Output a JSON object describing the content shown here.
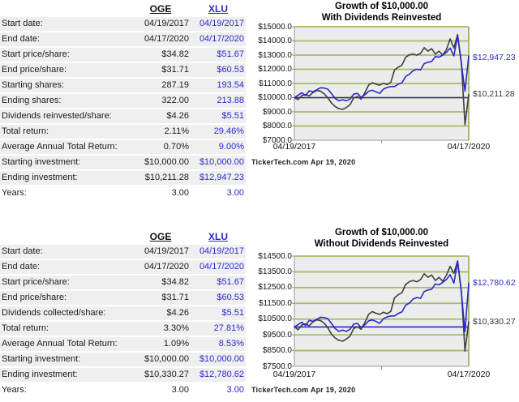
{
  "colors": {
    "link_blue": "#2b2bcc",
    "line_blue": "#2929c8",
    "line_dark": "#3f3f3f",
    "grid_green": "#a4bb67",
    "plot_bg": "#ececec",
    "row_bg": "#efefef"
  },
  "tables": [
    {
      "name": "with_dividends",
      "columns": [
        "OGE",
        "XLU"
      ],
      "rows": [
        {
          "label": "Start date:",
          "oge": "04/19/2017",
          "xlu": "04/19/2017"
        },
        {
          "label": "End date:",
          "oge": "04/17/2020",
          "xlu": "04/17/2020"
        },
        {
          "label": "Start price/share:",
          "oge": "$34.82",
          "xlu": "$51.67"
        },
        {
          "label": "End price/share:",
          "oge": "$31.71",
          "xlu": "$60.53"
        },
        {
          "label": "Starting shares:",
          "oge": "287.19",
          "xlu": "193.54"
        },
        {
          "label": "Ending shares:",
          "oge": "322.00",
          "xlu": "213.88"
        },
        {
          "label": "Dividends reinvested/share:",
          "oge": "$4.26",
          "xlu": "$5.51"
        },
        {
          "label": "Total return:",
          "oge": "2.11%",
          "xlu": "29.46%"
        },
        {
          "label": "Average Annual Total Return:",
          "oge": "0.70%",
          "xlu": "9.00%"
        },
        {
          "label": "Starting investment:",
          "oge": "$10,000.00",
          "xlu": "$10,000.00"
        },
        {
          "label": "Ending investment:",
          "oge": "$10,211.28",
          "xlu": "$12,947.23"
        },
        {
          "label": "Years:",
          "oge": "3.00",
          "xlu": "3.00"
        }
      ]
    },
    {
      "name": "without_dividends",
      "columns": [
        "OGE",
        "XLU"
      ],
      "rows": [
        {
          "label": "Start date:",
          "oge": "04/19/2017",
          "xlu": "04/19/2017"
        },
        {
          "label": "End date:",
          "oge": "04/17/2020",
          "xlu": "04/17/2020"
        },
        {
          "label": "Start price/share:",
          "oge": "$34.82",
          "xlu": "$51.67"
        },
        {
          "label": "End price/share:",
          "oge": "$31.71",
          "xlu": "$60.53"
        },
        {
          "label": "Dividends collected/share:",
          "oge": "$4.26",
          "xlu": "$5.51"
        },
        {
          "label": "Total return:",
          "oge": "3.30%",
          "xlu": "27.81%"
        },
        {
          "label": "Average Annual Total Return:",
          "oge": "1.09%",
          "xlu": "8.53%"
        },
        {
          "label": "Starting investment:",
          "oge": "$10,000.00",
          "xlu": "$10,000.00"
        },
        {
          "label": "Ending investment:",
          "oge": "$10,330.27",
          "xlu": "$12,780.62"
        },
        {
          "label": "Years:",
          "oge": "3.00",
          "xlu": "3.00"
        }
      ]
    }
  ],
  "chart_data": [
    {
      "type": "line",
      "title_line1": "Growth of $10,000.00",
      "title_line2": "With Dividends Reinvested",
      "x_start": "04/19/2017",
      "x_end": "04/17/2020",
      "ylim": [
        7000,
        15000
      ],
      "y_ticks": [
        "$15000.0",
        "$14000.0",
        "$13000.0",
        "$12000.0",
        "$11000.0",
        "$10000.0",
        "$9000.0",
        "$8000.0",
        "$7000.0"
      ],
      "grid": true,
      "legend_position": "none",
      "reference_value": 10000,
      "xlu_end_label": "$12,947.23",
      "oge_end_label": "$10,211.28",
      "source": "TickerTech.com  Apr 19, 2020",
      "series": [
        {
          "name": "OGE",
          "color": "#3f3f3f",
          "final_value": 10211.28,
          "values": [
            10000,
            9870,
            10150,
            10230,
            10120,
            10360,
            10500,
            10470,
            10280,
            10000,
            9620,
            9380,
            9230,
            9180,
            9300,
            9500,
            9980,
            10080,
            9900,
            10350,
            10880,
            11060,
            10950,
            10880,
            11020,
            10920,
            11080,
            11950,
            12150,
            12300,
            12850,
            13020,
            13080,
            13000,
            13120,
            13520,
            13280,
            13450,
            13080,
            13280,
            13000,
            13400,
            14150,
            13500,
            14450,
            12500,
            8100,
            10211.28
          ]
        },
        {
          "name": "XLU",
          "color": "#2929c8",
          "final_value": 12947.23,
          "values": [
            10000,
            10180,
            10350,
            10150,
            10480,
            10420,
            10550,
            10700,
            10680,
            10600,
            10300,
            9950,
            9780,
            9850,
            9780,
            9900,
            10250,
            10300,
            10020,
            10200,
            10450,
            10520,
            10420,
            10300,
            10600,
            10720,
            10780,
            10780,
            10950,
            11050,
            11500,
            11650,
            11900,
            12000,
            11950,
            12400,
            12500,
            12550,
            12900,
            12850,
            13000,
            13200,
            13500,
            12950,
            14350,
            12400,
            10450,
            12947.23
          ]
        }
      ]
    },
    {
      "type": "line",
      "title_line1": "Growth of $10,000.00",
      "title_line2": "Without Dividends Reinvested",
      "x_start": "04/19/2017",
      "x_end": "04/17/2020",
      "ylim": [
        7500,
        14500
      ],
      "y_ticks": [
        "$14500.0",
        "$13500.0",
        "$12500.0",
        "$11500.0",
        "$10500.0",
        "$9500.0",
        "$8500.0",
        "$7500.0"
      ],
      "grid": true,
      "legend_position": "none",
      "reference_value": 10000,
      "xlu_end_label": "$12,780.62",
      "oge_end_label": "$10,330.27",
      "source": "TickerTech.com  Apr 19, 2020",
      "series": [
        {
          "name": "OGE",
          "color": "#3f3f3f",
          "final_value": 10330.27,
          "values": [
            10000,
            9820,
            10120,
            10200,
            10080,
            10320,
            10450,
            10420,
            10250,
            9950,
            9550,
            9300,
            9150,
            9100,
            9230,
            9420,
            9900,
            10020,
            9850,
            10280,
            10800,
            10980,
            10870,
            10800,
            10940,
            10840,
            10990,
            11850,
            12050,
            12180,
            12700,
            12880,
            12950,
            12870,
            13000,
            13380,
            13150,
            13300,
            12950,
            13150,
            12900,
            13300,
            13850,
            13400,
            14200,
            12300,
            8470,
            10330.27
          ]
        },
        {
          "name": "XLU",
          "color": "#2929c8",
          "final_value": 12780.62,
          "values": [
            10000,
            10150,
            10300,
            10100,
            10420,
            10360,
            10480,
            10620,
            10600,
            10520,
            10230,
            9900,
            9720,
            9800,
            9720,
            9850,
            10180,
            10230,
            9960,
            10130,
            10380,
            10450,
            10350,
            10230,
            10520,
            10640,
            10700,
            10700,
            10860,
            10960,
            11380,
            11520,
            11770,
            11870,
            11820,
            12250,
            12350,
            12400,
            12730,
            12680,
            12830,
            13020,
            13320,
            12780,
            14150,
            12200,
            9700,
            12780.62
          ]
        }
      ]
    }
  ]
}
